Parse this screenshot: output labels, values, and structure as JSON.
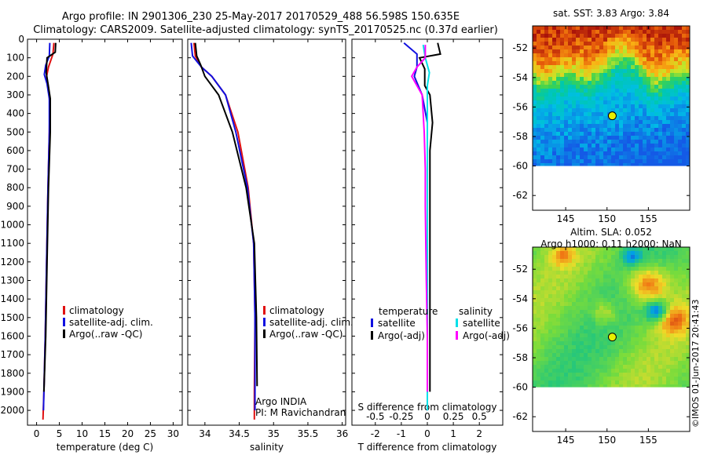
{
  "header": {
    "line1": "Argo profile: IN 2901306_230 25-May-2017 20170529_488 56.598S 150.635E",
    "line2": "Climatology: CARS2009. Satellite-adjusted climatology: synTS_20170525.nc (0.37d earlier)"
  },
  "side": {
    "credit": "©IMOS 01-Jun-2017 20:41:43"
  },
  "colors": {
    "climatology": "#e01010",
    "satellite": "#1010e0",
    "argo": "#000000",
    "sat_salinity": "#00e0e8",
    "argo_salinity": "#ff00ff"
  },
  "chart_data": [
    {
      "type": "line",
      "xlabel": "temperature (deg C)",
      "ylabel": "",
      "xlim": [
        -2,
        32
      ],
      "ylim": [
        2080,
        0
      ],
      "xticks": [
        "0",
        "5",
        "10",
        "15",
        "20",
        "25",
        "30"
      ],
      "xtick_values": [
        0,
        5,
        10,
        15,
        20,
        25,
        30
      ],
      "yticks": [
        "0",
        "100",
        "200",
        "300",
        "400",
        "500",
        "600",
        "700",
        "800",
        "900",
        "1000",
        "1100",
        "1200",
        "1300",
        "1400",
        "1500",
        "1600",
        "1700",
        "1800",
        "1900",
        "2000"
      ],
      "ytick_values": [
        0,
        100,
        200,
        300,
        400,
        500,
        600,
        700,
        800,
        900,
        1000,
        1100,
        1200,
        1300,
        1400,
        1500,
        1600,
        1700,
        1800,
        1900,
        2000
      ],
      "legend": [
        "climatology",
        "satellite-adj. clim.",
        "Argo(..raw -QC)"
      ],
      "series": [
        {
          "name": "climatology",
          "points": [
            [
              3.8,
              20
            ],
            [
              3.6,
              80
            ],
            [
              2.6,
              150
            ],
            [
              2.2,
              200
            ],
            [
              2.6,
              260
            ],
            [
              2.9,
              350
            ],
            [
              2.8,
              500
            ],
            [
              2.5,
              800
            ],
            [
              2.2,
              1200
            ],
            [
              1.9,
              1600
            ],
            [
              1.6,
              1900
            ],
            [
              1.4,
              2050
            ]
          ]
        },
        {
          "name": "satellite-adj. clim.",
          "points": [
            [
              2.9,
              20
            ],
            [
              2.8,
              90
            ],
            [
              2.0,
              140
            ],
            [
              1.7,
              190
            ],
            [
              2.3,
              240
            ],
            [
              2.8,
              320
            ],
            [
              2.8,
              500
            ],
            [
              2.5,
              800
            ],
            [
              2.2,
              1200
            ],
            [
              1.9,
              1600
            ],
            [
              1.6,
              1900
            ],
            [
              1.5,
              2000
            ]
          ]
        },
        {
          "name": "Argo(..raw -QC)",
          "points": [
            [
              4.2,
              20
            ],
            [
              4.1,
              70
            ],
            [
              2.3,
              100
            ],
            [
              2.1,
              180
            ],
            [
              2.5,
              240
            ],
            [
              3.0,
              320
            ],
            [
              3.0,
              500
            ],
            [
              2.6,
              800
            ],
            [
              2.3,
              1200
            ],
            [
              2.0,
              1600
            ],
            [
              1.6,
              1900
            ]
          ]
        }
      ]
    },
    {
      "type": "line",
      "xlabel": "salinity",
      "xlim": [
        33.75,
        36.05
      ],
      "ylim": [
        2080,
        0
      ],
      "xticks": [
        "34",
        "34.5",
        "35",
        "35.5",
        "36"
      ],
      "xtick_values": [
        34,
        34.5,
        35,
        35.5,
        36
      ],
      "legend": [
        "climatology",
        "satellite-adj. clim.",
        "Argo(..raw -QC)"
      ],
      "annotations": [
        "Argo INDIA",
        "PI: M Ravichandran"
      ],
      "series": [
        {
          "name": "climatology",
          "points": [
            [
              33.84,
              20
            ],
            [
              33.86,
              90
            ],
            [
              33.95,
              150
            ],
            [
              34.1,
              200
            ],
            [
              34.3,
              300
            ],
            [
              34.48,
              500
            ],
            [
              34.63,
              800
            ],
            [
              34.71,
              1100
            ],
            [
              34.73,
              1500
            ],
            [
              34.72,
              1900
            ],
            [
              34.72,
              2050
            ]
          ]
        },
        {
          "name": "satellite-adj. clim.",
          "points": [
            [
              33.8,
              20
            ],
            [
              33.82,
              90
            ],
            [
              33.95,
              150
            ],
            [
              34.1,
              200
            ],
            [
              34.3,
              300
            ],
            [
              34.45,
              500
            ],
            [
              34.62,
              800
            ],
            [
              34.71,
              1100
            ],
            [
              34.73,
              1500
            ],
            [
              34.73,
              1900
            ],
            [
              34.73,
              2000
            ]
          ]
        },
        {
          "name": "Argo(..raw -QC)",
          "points": [
            [
              33.86,
              20
            ],
            [
              33.88,
              90
            ],
            [
              33.94,
              140
            ],
            [
              34.0,
              200
            ],
            [
              34.2,
              300
            ],
            [
              34.4,
              500
            ],
            [
              34.6,
              800
            ],
            [
              34.72,
              1100
            ],
            [
              34.75,
              1500
            ],
            [
              34.76,
              1870
            ]
          ]
        }
      ]
    },
    {
      "type": "line",
      "xlabel": "T difference from climatology",
      "top_axis_label": "S difference from climatology",
      "xlim": [
        -2.9,
        2.9
      ],
      "ylim": [
        2080,
        0
      ],
      "xticks": [
        "-2",
        "-1",
        "0",
        "1",
        "2"
      ],
      "xtick_values": [
        -2,
        -1,
        0,
        1,
        2
      ],
      "top_ticks": [
        "-0.5",
        "-0.25",
        "0",
        "0.25",
        "0.5"
      ],
      "top_tick_values": [
        -0.5,
        -0.25,
        0,
        0.25,
        0.5
      ],
      "legend_groups": [
        {
          "title": "temperature",
          "items": [
            "satellite",
            "Argo(-adj)"
          ]
        },
        {
          "title": "salinity",
          "items": [
            "satellite",
            "Argo(-adj)"
          ]
        }
      ],
      "series": [
        {
          "name": "temperature satellite",
          "points": [
            [
              -0.9,
              20
            ],
            [
              -0.4,
              80
            ],
            [
              -0.4,
              150
            ],
            [
              -0.5,
              200
            ],
            [
              -0.2,
              300
            ],
            [
              0.0,
              450
            ],
            [
              0.0,
              800
            ],
            [
              0.0,
              1300
            ],
            [
              0.0,
              1700
            ],
            [
              0.0,
              2000
            ]
          ]
        },
        {
          "name": "temperature Argo(-adj)",
          "points": [
            [
              0.4,
              20
            ],
            [
              0.5,
              80
            ],
            [
              -0.3,
              100
            ],
            [
              -0.1,
              160
            ],
            [
              -0.1,
              250
            ],
            [
              0.1,
              300
            ],
            [
              0.2,
              450
            ],
            [
              0.1,
              600
            ],
            [
              0.1,
              900
            ],
            [
              0.1,
              1200
            ],
            [
              0.1,
              1600
            ],
            [
              0.1,
              1900
            ]
          ]
        },
        {
          "name": "salinity satellite",
          "points": [
            [
              -0.04,
              30
            ],
            [
              -0.02,
              100
            ],
            [
              0.02,
              180
            ],
            [
              0.0,
              250
            ],
            [
              0.0,
              500
            ],
            [
              0.0,
              1000
            ],
            [
              0.0,
              1500
            ],
            [
              0.0,
              2000
            ]
          ]
        },
        {
          "name": "salinity Argo(-adj)",
          "points": [
            [
              -0.02,
              30
            ],
            [
              -0.02,
              100
            ],
            [
              -0.1,
              150
            ],
            [
              -0.15,
              200
            ],
            [
              -0.05,
              300
            ],
            [
              -0.03,
              500
            ],
            [
              -0.02,
              700
            ],
            [
              -0.02,
              900
            ],
            [
              -0.01,
              1300
            ],
            [
              0.0,
              1600
            ],
            [
              0.0,
              1900
            ]
          ]
        }
      ]
    },
    {
      "type": "heatmap",
      "title": "sat. SST: 3.83 Argo: 3.84",
      "xlim": [
        141,
        160
      ],
      "ylim": [
        -63,
        -50.5
      ],
      "xticks": [
        "145",
        "150",
        "155"
      ],
      "xtick_values": [
        145,
        150,
        155
      ],
      "yticks": [
        "-52",
        "-54",
        "-56",
        "-58",
        "-60",
        "-62"
      ],
      "ytick_values": [
        -52,
        -54,
        -56,
        -58,
        -60,
        -62
      ],
      "marker": {
        "lon": 150.635,
        "lat": -56.598
      }
    },
    {
      "type": "heatmap",
      "title": "Altim. SLA: 0.052",
      "subtitle": "Argo h1000: 0.11 h2000: NaN",
      "xlim": [
        141,
        160
      ],
      "ylim": [
        -63,
        -50.5
      ],
      "xticks": [
        "145",
        "150",
        "155"
      ],
      "xtick_values": [
        145,
        150,
        155
      ],
      "yticks": [
        "-52",
        "-54",
        "-56",
        "-58",
        "-60",
        "-62"
      ],
      "ytick_values": [
        -52,
        -54,
        -56,
        -58,
        -60,
        -62
      ],
      "marker": {
        "lon": 150.635,
        "lat": -56.598
      }
    }
  ]
}
